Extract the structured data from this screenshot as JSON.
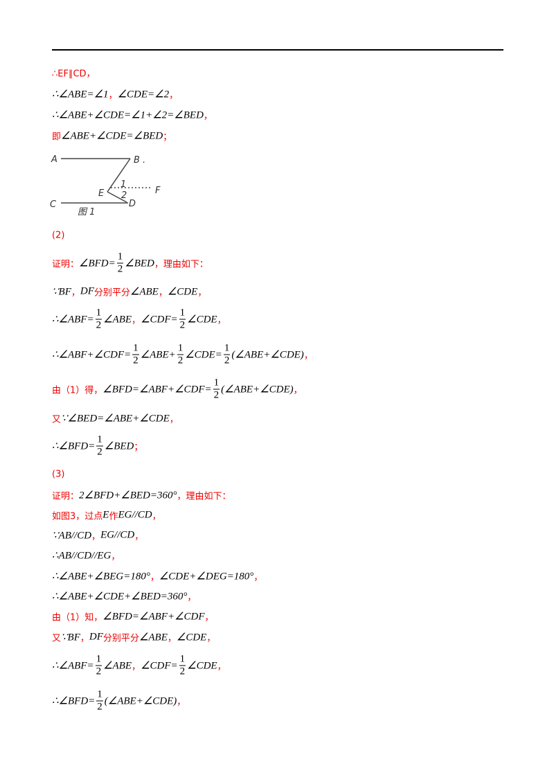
{
  "lines": [
    [
      "∴EF∥CD，"
    ],
    [
      {
        "math": "∴∠ABE=∠1"
      },
      "，",
      {
        "math": "∠CDE=∠2"
      },
      "，"
    ],
    [
      {
        "math": "∴∠ABE+∠CDE=∠1+∠2=∠BED"
      },
      "，"
    ],
    [
      "即",
      {
        "math": "∠ABE+∠CDE=∠BED"
      },
      "；"
    ],
    [
      "(2)"
    ],
    [
      "证明：",
      {
        "math": "∠BFD="
      },
      {
        "num": "1",
        "den": "2"
      },
      {
        "math": "∠BED"
      },
      "，理由如下："
    ],
    [
      {
        "math": "∵BF"
      },
      "，",
      {
        "math": "DF"
      },
      "分别平分",
      {
        "math": "∠ABE"
      },
      "，",
      {
        "math": "∠CDE"
      },
      "，"
    ],
    [
      {
        "math": "∴∠ABF="
      },
      {
        "num": "1",
        "den": "2"
      },
      {
        "math": "∠ABE"
      },
      "，",
      {
        "math": "∠CDF="
      },
      {
        "num": "1",
        "den": "2"
      },
      {
        "math": "∠CDE"
      },
      "，"
    ],
    [
      {
        "math": "∴∠ABF+∠CDF="
      },
      {
        "num": "1",
        "den": "2"
      },
      {
        "math": "∠ABE+"
      },
      {
        "num": "1",
        "den": "2"
      },
      {
        "math": "∠CDE="
      },
      {
        "num": "1",
        "den": "2"
      },
      {
        "math": "(∠ABE+∠CDE)"
      },
      "，"
    ],
    [
      "由（1）得，",
      {
        "math": "∠BFD=∠ABF+∠CDF="
      },
      {
        "num": "1",
        "den": "2"
      },
      {
        "math": "(∠ABE+∠CDE)"
      },
      "，"
    ],
    [
      "又",
      {
        "math": "∵∠BED=∠ABE+∠CDE"
      },
      "，"
    ],
    [
      {
        "math": "∴∠BFD="
      },
      {
        "num": "1",
        "den": "2"
      },
      {
        "math": "∠BED"
      },
      "；"
    ],
    [
      "(3)"
    ],
    [
      "证明：",
      {
        "math": "2∠BFD+∠BED=360°"
      },
      "，理由如下："
    ],
    [
      "如图3，过点",
      {
        "math": "E"
      },
      "作",
      {
        "math": "EG//CD"
      },
      "，"
    ],
    [
      {
        "math": "∵AB//CD"
      },
      "，",
      {
        "math": "EG//CD"
      },
      "，"
    ],
    [
      {
        "math": "∴AB//CD//EG"
      },
      "，"
    ],
    [
      {
        "math": "∴∠ABE+∠BEG=180°"
      },
      "，",
      {
        "math": "∠CDE+∠DEG=180°"
      },
      "，"
    ],
    [
      {
        "math": "∴∠ABE+∠CDE+∠BED=360°"
      },
      "，"
    ],
    [
      "由（1）知，",
      {
        "math": "∠BFD=∠ABF+∠CDF"
      },
      "，"
    ],
    [
      "又",
      {
        "math": "∵BF"
      },
      "，",
      {
        "math": "DF"
      },
      "分别平分",
      {
        "math": "∠ABE"
      },
      "，",
      {
        "math": "∠CDE"
      },
      "，"
    ],
    [
      {
        "math": "∴∠ABF="
      },
      {
        "num": "1",
        "den": "2"
      },
      {
        "math": "∠ABE"
      },
      "，",
      {
        "math": "∠CDF="
      },
      {
        "num": "1",
        "den": "2"
      },
      {
        "math": "∠CDE"
      },
      "，"
    ],
    [
      {
        "math": "∴∠BFD="
      },
      {
        "num": "1",
        "den": "2"
      },
      {
        "math": "(∠ABE+∠CDE)"
      },
      "，"
    ]
  ],
  "figure": {
    "labels": [
      "A",
      "B .",
      "E",
      "1",
      "2",
      "F",
      "C",
      "D",
      "图 1"
    ]
  }
}
